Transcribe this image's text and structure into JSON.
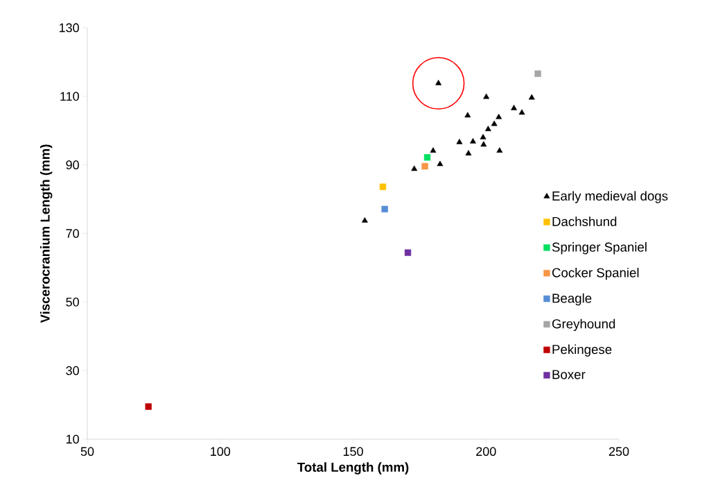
{
  "chart_data": {
    "type": "scatter",
    "xlabel": "Total Length (mm)",
    "ylabel": "Viscerocranium Length (mm)",
    "xlim": [
      50,
      250
    ],
    "xticks": [
      50,
      100,
      150,
      200,
      250
    ],
    "ylim": [
      10,
      130
    ],
    "yticks": [
      10,
      30,
      50,
      70,
      90,
      110,
      130
    ],
    "grid": false,
    "legend": "right",
    "series": [
      {
        "name": "Early medieval dogs",
        "color": "#000000",
        "marker": "triangle",
        "x": [
          182.1,
          200.1,
          217.2,
          210.5,
          213.5,
          193.1,
          204.8,
          203.1,
          200.8,
          198.9,
          195.1,
          190.0,
          199.1,
          180.1,
          205.1,
          193.4,
          182.7,
          173.0,
          154.4
        ],
        "values": [
          113.8,
          109.8,
          109.6,
          106.5,
          105.2,
          104.4,
          103.9,
          101.9,
          100.4,
          98.0,
          96.8,
          96.6,
          95.9,
          94.1,
          94.1,
          93.3,
          90.2,
          88.8,
          73.7
        ]
      },
      {
        "name": "Dachshund",
        "color": "#ffc000",
        "marker": "square",
        "x": [
          161.2
        ],
        "values": [
          83.6
        ]
      },
      {
        "name": "Springer Spaniel",
        "color": "#00e060",
        "marker": "square",
        "x": [
          177.9
        ],
        "values": [
          92.2
        ]
      },
      {
        "name": "Cocker Spaniel",
        "color": "#f79646",
        "marker": "square",
        "x": [
          177.0
        ],
        "values": [
          89.6
        ]
      },
      {
        "name": "Beagle",
        "color": "#558ed5",
        "marker": "square",
        "x": [
          161.9
        ],
        "values": [
          77.1
        ]
      },
      {
        "name": "Greyhound",
        "color": "#a6a6a6",
        "marker": "square",
        "x": [
          219.5
        ],
        "values": [
          116.6
        ]
      },
      {
        "name": "Pekingese",
        "color": "#c00000",
        "marker": "square",
        "x": [
          73.0
        ],
        "values": [
          19.5
        ]
      },
      {
        "name": "Boxer",
        "color": "#7030a0",
        "marker": "square",
        "x": [
          170.6
        ],
        "values": [
          64.4
        ]
      }
    ]
  }
}
